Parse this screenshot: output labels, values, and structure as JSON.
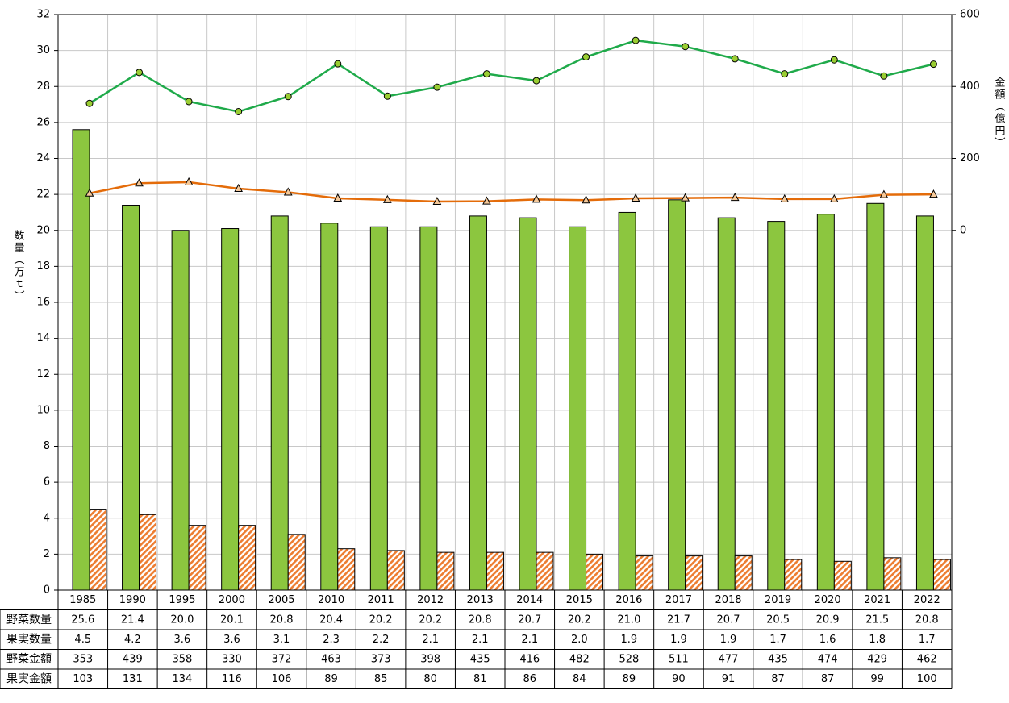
{
  "chart_data": {
    "type": "bar",
    "y_label": "数量（万ｔ）",
    "y2_label": "金額（億円）",
    "categories": [
      "1985",
      "1990",
      "1995",
      "2000",
      "2005",
      "2010",
      "2011",
      "2012",
      "2013",
      "2014",
      "2015",
      "2016",
      "2017",
      "2018",
      "2019",
      "2020",
      "2021",
      "2022"
    ],
    "series": [
      {
        "name": "野菜数量",
        "type": "bar",
        "color": "#8cc63f",
        "values": [
          25.6,
          21.4,
          20.0,
          20.1,
          20.8,
          20.4,
          20.2,
          20.2,
          20.8,
          20.7,
          20.2,
          21.0,
          21.7,
          20.7,
          20.5,
          20.9,
          21.5,
          20.8
        ],
        "value_labels": [
          "25.6",
          "21.4",
          "20.0",
          "20.1",
          "20.8",
          "20.4",
          "20.2",
          "20.2",
          "20.8",
          "20.7",
          "20.2",
          "21.0",
          "21.7",
          "20.7",
          "20.5",
          "20.9",
          "21.5",
          "20.8"
        ]
      },
      {
        "name": "果実数量",
        "type": "bar",
        "color": "#ed7d31",
        "hatch": true,
        "values": [
          4.5,
          4.2,
          3.6,
          3.6,
          3.1,
          2.3,
          2.2,
          2.1,
          2.1,
          2.1,
          2.0,
          1.9,
          1.9,
          1.9,
          1.7,
          1.6,
          1.8,
          1.7
        ],
        "value_labels": [
          "4.5",
          "4.2",
          "3.6",
          "3.6",
          "3.1",
          "2.3",
          "2.2",
          "2.1",
          "2.1",
          "2.1",
          "2.0",
          "1.9",
          "1.9",
          "1.9",
          "1.7",
          "1.6",
          "1.8",
          "1.7"
        ]
      },
      {
        "name": "野菜金額",
        "type": "line",
        "axis": "y2",
        "color": "#1faa4a",
        "marker": "circle",
        "marker_color": "#9acd32",
        "values": [
          353,
          439,
          358,
          330,
          372,
          463,
          373,
          398,
          435,
          416,
          482,
          528,
          511,
          477,
          435,
          474,
          429,
          462
        ]
      },
      {
        "name": "果実金額",
        "type": "line",
        "axis": "y2",
        "color": "#e46c0a",
        "marker": "triangle",
        "marker_color": "#f5c99a",
        "values": [
          103,
          131,
          134,
          116,
          106,
          89,
          85,
          80,
          81,
          86,
          84,
          89,
          90,
          91,
          87,
          87,
          99,
          100
        ]
      }
    ],
    "ylim": [
      0,
      32
    ],
    "yticks": [
      0,
      2,
      4,
      6,
      8,
      10,
      12,
      14,
      16,
      18,
      20,
      22,
      24,
      26,
      28,
      30,
      32
    ],
    "y2lim": [
      -1000,
      600
    ],
    "y2ticks": [
      0,
      200,
      400,
      600
    ],
    "grid": true
  }
}
